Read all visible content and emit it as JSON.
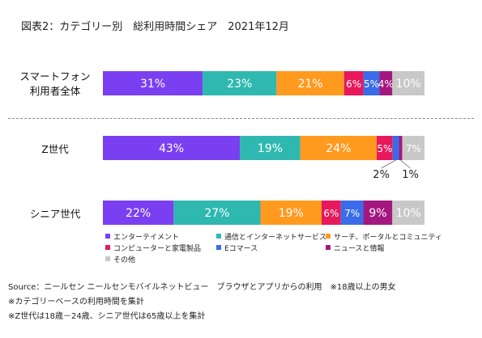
{
  "title": "図表2：カテゴリー別　総利用時間シェア　2021年12月",
  "colors": {
    "entertainment": "#7B3FF2",
    "communication": "#2EB8B0",
    "search": "#FF9A1F",
    "computer": "#E8185C",
    "ecommerce": "#3A6BE8",
    "news": "#A3187F",
    "other": "#C8C8C8"
  },
  "chart_data": {
    "type": "bar",
    "orientation": "horizontal-stacked",
    "categories": [
      "スマートフォン\n利用者全体",
      "Z世代",
      "シニア世代"
    ],
    "series": [
      {
        "name": "エンターテイメント",
        "values": [
          31,
          43,
          22
        ],
        "labels": [
          "31%",
          "43%",
          "22%"
        ]
      },
      {
        "name": "通信とインターネットサービス",
        "values": [
          23,
          19,
          27
        ],
        "labels": [
          "23%",
          "19%",
          "27%"
        ]
      },
      {
        "name": "サーチ、ポータルとコミュニティ",
        "values": [
          21,
          24,
          19
        ],
        "labels": [
          "21%",
          "24%",
          "19%"
        ]
      },
      {
        "name": "コンピューターと家電製品",
        "values": [
          6,
          5,
          6
        ],
        "labels": [
          "6%",
          "5%",
          "6%"
        ]
      },
      {
        "name": "Eコマース",
        "values": [
          5,
          2,
          7
        ],
        "labels": [
          "5%",
          "2%",
          "7%"
        ]
      },
      {
        "name": "ニュースと情報",
        "values": [
          4,
          1,
          9
        ],
        "labels": [
          "4%",
          "1%",
          "9%"
        ]
      },
      {
        "name": "その他",
        "values": [
          10,
          7,
          10
        ],
        "labels": [
          "10%",
          "7%",
          "10%"
        ]
      }
    ],
    "xlim": [
      0,
      100
    ],
    "stacked": true,
    "legend": "bottom",
    "grid": false
  },
  "row_labels": [
    "スマートフォン",
    "利用者全体",
    "Z世代",
    "シニア世代"
  ],
  "footnotes": [
    "Source：ニールセン ニールセンモバイルネットビュー　ブラウザとアプリからの利用　※18歳以上の男女",
    "※カテゴリーベースの利用時間を集計",
    "※Z世代は18歳－24歳、シニア世代は65歳以上を集計"
  ]
}
